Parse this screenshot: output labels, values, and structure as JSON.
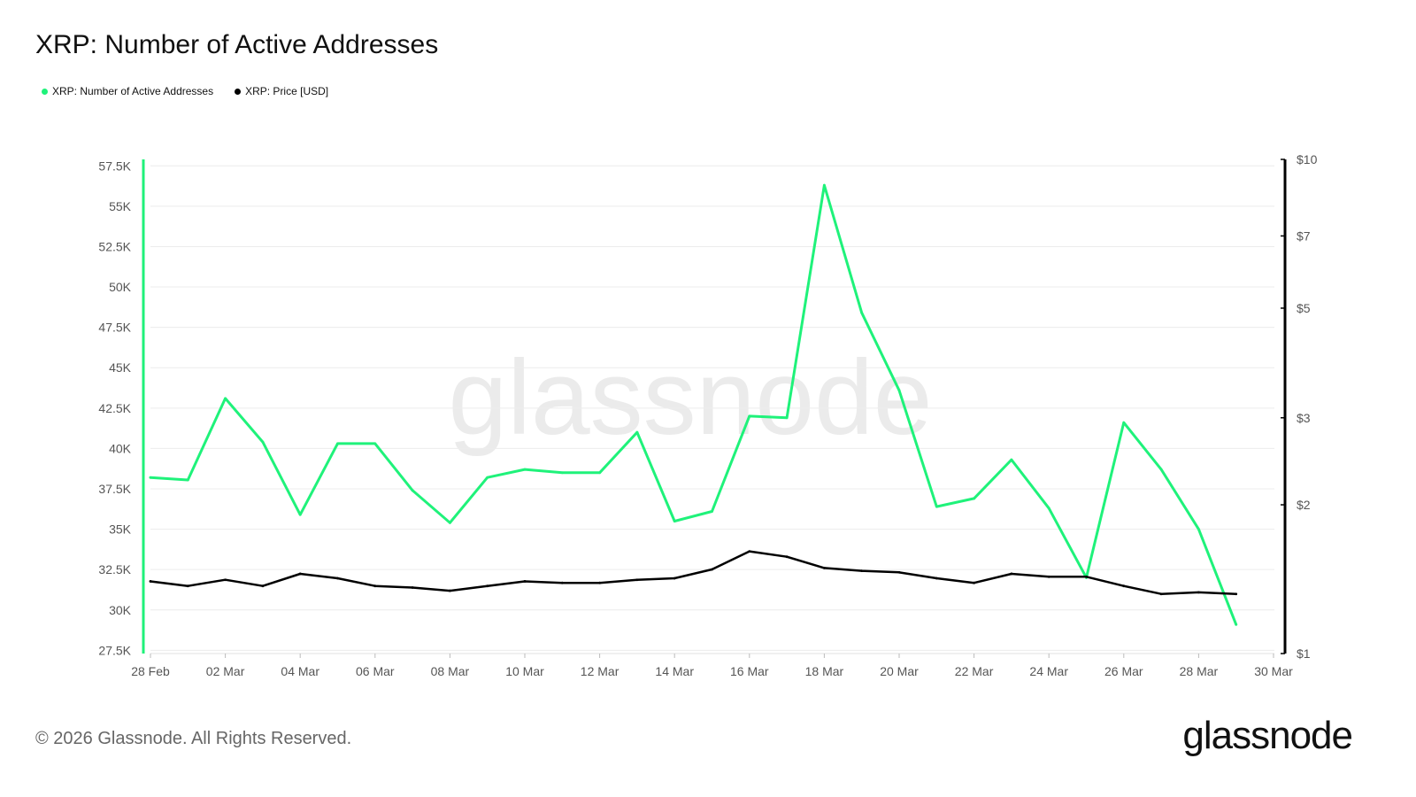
{
  "header": {
    "title": "XRP: Number of Active Addresses"
  },
  "legend": {
    "items": [
      {
        "label": "XRP: Number of Active Addresses",
        "color": "#1ff27a"
      },
      {
        "label": "XRP: Price [USD]",
        "color": "#000000"
      }
    ]
  },
  "watermark": "glassnode",
  "footer": {
    "copyright": "© 2026 Glassnode. All Rights Reserved.",
    "logo": "glassnode"
  },
  "chart_data": {
    "type": "line",
    "x_labels": [
      "28 Feb",
      "02 Mar",
      "04 Mar",
      "06 Mar",
      "08 Mar",
      "10 Mar",
      "12 Mar",
      "14 Mar",
      "16 Mar",
      "18 Mar",
      "20 Mar",
      "22 Mar",
      "24 Mar",
      "26 Mar",
      "28 Mar",
      "30 Mar"
    ],
    "x": [
      "28 Feb",
      "01 Mar",
      "02 Mar",
      "03 Mar",
      "04 Mar",
      "05 Mar",
      "06 Mar",
      "07 Mar",
      "08 Mar",
      "09 Mar",
      "10 Mar",
      "11 Mar",
      "12 Mar",
      "13 Mar",
      "14 Mar",
      "15 Mar",
      "16 Mar",
      "17 Mar",
      "18 Mar",
      "19 Mar",
      "20 Mar",
      "21 Mar",
      "22 Mar",
      "23 Mar",
      "24 Mar",
      "25 Mar",
      "26 Mar",
      "27 Mar",
      "28 Mar",
      "29 Mar"
    ],
    "y_left": {
      "ticks": [
        "27.5K",
        "30K",
        "32.5K",
        "35K",
        "37.5K",
        "40K",
        "42.5K",
        "45K",
        "47.5K",
        "50K",
        "52.5K",
        "55K",
        "57.5K"
      ],
      "tick_values": [
        27500,
        30000,
        32500,
        35000,
        37500,
        40000,
        42500,
        45000,
        47500,
        50000,
        52500,
        55000,
        57500
      ],
      "range": [
        27300,
        57900
      ],
      "color": "#1ff27a"
    },
    "y_right": {
      "scale": "log",
      "ticks": [
        "$1",
        "$2",
        "$3",
        "$5",
        "$7",
        "$10"
      ],
      "tick_values": [
        1,
        2,
        3,
        5,
        7,
        10
      ],
      "range": [
        1,
        10
      ],
      "color": "#000000"
    },
    "series": [
      {
        "name": "XRP: Number of Active Addresses",
        "axis": "left",
        "color": "#1ff27a",
        "values": [
          38200,
          38050,
          43100,
          40400,
          35900,
          40300,
          40300,
          37400,
          35400,
          38200,
          38700,
          38500,
          38500,
          41000,
          35500,
          36100,
          42000,
          41900,
          56300,
          48400,
          43600,
          36400,
          36900,
          39300,
          36300,
          32000,
          41600,
          38700,
          35000,
          29100
        ]
      },
      {
        "name": "XRP: Price [USD]",
        "axis": "right",
        "color": "#000000",
        "values": [
          1.4,
          1.37,
          1.41,
          1.37,
          1.45,
          1.42,
          1.37,
          1.36,
          1.34,
          1.37,
          1.4,
          1.39,
          1.39,
          1.41,
          1.42,
          1.48,
          1.61,
          1.57,
          1.49,
          1.47,
          1.46,
          1.42,
          1.39,
          1.45,
          1.43,
          1.43,
          1.37,
          1.32,
          1.33,
          1.32
        ]
      }
    ]
  }
}
